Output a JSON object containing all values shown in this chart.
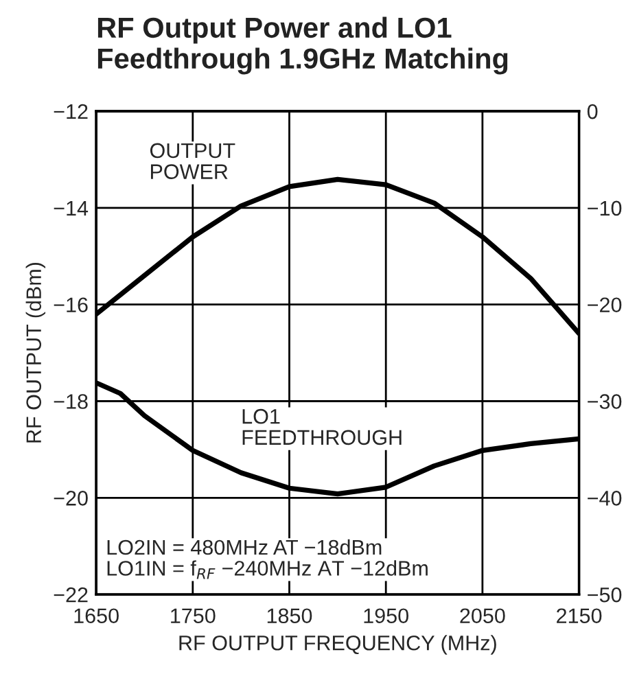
{
  "chart_data": {
    "type": "line",
    "title": "RF Output Power and LO1\nFeedthrough 1.9GHz Matching",
    "xlabel": "RF OUTPUT FREQUENCY (MHz)",
    "ylabel": "RF OUTPUT (dBm)",
    "x": [
      1650,
      1700,
      1750,
      1800,
      1850,
      1900,
      1950,
      2000,
      2050,
      2100,
      2150
    ],
    "series": [
      {
        "color": "#000000",
        "values": [
          -16.2,
          -15.4,
          -14.6,
          -13.96,
          -13.56,
          -13.41,
          -13.52,
          -13.9,
          -14.6,
          -15.46,
          -16.6
        ]
      },
      {
        "color": "#000000",
        "axis": "y2",
        "x": [
          1650,
          1675,
          1700,
          1750,
          1800,
          1850,
          1900,
          1950,
          2000,
          2050,
          2100,
          2150
        ],
        "values": [
          -28.1,
          -29.2,
          -31.5,
          -35.1,
          -37.4,
          -39.0,
          -39.6,
          -38.9,
          -36.7,
          -35.1,
          -34.4,
          -33.9
        ]
      }
    ],
    "xlim": [
      1650,
      2150
    ],
    "xticks": [
      1650,
      1750,
      1850,
      1950,
      2050,
      2150
    ],
    "ylim": [
      -22,
      -12
    ],
    "yticks": [
      {
        "value": -22,
        "label": "−22"
      },
      {
        "value": -20,
        "label": "−20"
      },
      {
        "value": -18,
        "label": "−18"
      },
      {
        "value": -16,
        "label": "−16"
      },
      {
        "value": -14,
        "label": "−14"
      },
      {
        "value": -12,
        "label": "−12"
      }
    ],
    "y2lim": [
      -50,
      0
    ],
    "y2ticks": [
      {
        "value": -50,
        "label": "−50"
      },
      {
        "value": -40,
        "label": "−40"
      },
      {
        "value": -30,
        "label": "−30"
      },
      {
        "value": -20,
        "label": "−20"
      },
      {
        "value": -10,
        "label": "−10"
      },
      0
    ],
    "annotations": [
      "OUTPUT\nPOWER",
      "LO1\nFEEDTHROUGH",
      "LO2IN = 480MHz AT −18dBm\nLO1IN = f$_{RF}$ −240MHz AT −12dBm"
    ],
    "grid": true,
    "legend": false,
    "marker": "none",
    "line_style": "solid"
  }
}
